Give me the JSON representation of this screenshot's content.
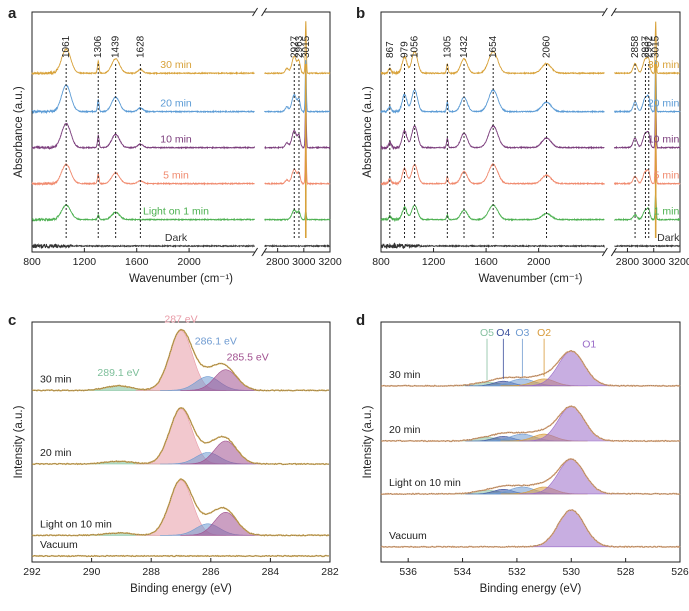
{
  "chart_data": [
    {
      "panel": "a",
      "type": "line",
      "xlabel": "Wavenumber (cm⁻¹)",
      "ylabel": "Absorbance (a.u.)",
      "xlim": [
        800,
        3200
      ],
      "axis_break": [
        2500,
        2700
      ],
      "xticks": [
        800,
        1200,
        1600,
        2000,
        2800,
        3000,
        3200
      ],
      "peak_lines": [
        1061,
        1306,
        1439,
        1628,
        2927,
        2963,
        3015
      ],
      "peak_labels": [
        "1061",
        "1306",
        "1439",
        "1628",
        "2927",
        "2963",
        "3015"
      ],
      "series": [
        {
          "name": "30 min",
          "color": "#d8a23a",
          "offset": 0.72,
          "peaks": [
            [
              1061,
              0.1,
              35
            ],
            [
              1306,
              0.05,
              6
            ],
            [
              1439,
              0.06,
              30
            ],
            [
              1628,
              0.015,
              20
            ],
            [
              2870,
              0.02,
              12
            ],
            [
              2927,
              0.07,
              18
            ],
            [
              2963,
              0.045,
              10
            ],
            [
              3015,
              0.22,
              4
            ]
          ]
        },
        {
          "name": "20 min",
          "color": "#5b9bd5",
          "offset": 0.56,
          "peaks": [
            [
              1061,
              0.11,
              35
            ],
            [
              1306,
              0.05,
              6
            ],
            [
              1439,
              0.06,
              30
            ],
            [
              1628,
              0.015,
              20
            ],
            [
              2870,
              0.02,
              12
            ],
            [
              2927,
              0.07,
              18
            ],
            [
              2963,
              0.045,
              10
            ],
            [
              3015,
              0.22,
              4
            ]
          ]
        },
        {
          "name": "10 min",
          "color": "#7b3d7c",
          "offset": 0.41,
          "peaks": [
            [
              1061,
              0.1,
              35
            ],
            [
              1306,
              0.05,
              6
            ],
            [
              1439,
              0.055,
              30
            ],
            [
              1628,
              0.015,
              20
            ],
            [
              2870,
              0.02,
              12
            ],
            [
              2927,
              0.07,
              18
            ],
            [
              2963,
              0.045,
              10
            ],
            [
              3015,
              0.22,
              4
            ]
          ]
        },
        {
          "name": "5 min",
          "color": "#f08a6e",
          "offset": 0.26,
          "peaks": [
            [
              1061,
              0.08,
              35
            ],
            [
              1306,
              0.04,
              6
            ],
            [
              1439,
              0.045,
              30
            ],
            [
              1628,
              0.012,
              20
            ],
            [
              2870,
              0.015,
              12
            ],
            [
              2927,
              0.06,
              18
            ],
            [
              2963,
              0.04,
              10
            ],
            [
              3015,
              0.22,
              4
            ]
          ]
        },
        {
          "name": "Light on 1 min",
          "color": "#4cb050",
          "offset": 0.11,
          "peaks": [
            [
              1061,
              0.06,
              35
            ],
            [
              1306,
              0.02,
              6
            ],
            [
              1439,
              0.03,
              30
            ],
            [
              2927,
              0.04,
              18
            ],
            [
              2963,
              0.03,
              10
            ],
            [
              3015,
              0.04,
              4
            ]
          ]
        },
        {
          "name": "Dark",
          "color": "#333333",
          "offset": 0.0,
          "peaks": []
        }
      ]
    },
    {
      "panel": "b",
      "type": "line",
      "xlabel": "Wavenumber (cm⁻¹)",
      "ylabel": "Absorbance (a.u.)",
      "xlim": [
        800,
        3200
      ],
      "axis_break": [
        2500,
        2700
      ],
      "xticks": [
        800,
        1200,
        1600,
        2000,
        2800,
        3000,
        3200
      ],
      "peak_lines": [
        867,
        979,
        1056,
        1305,
        1432,
        1654,
        2060,
        2858,
        2937,
        2962,
        3015
      ],
      "peak_labels": [
        "867",
        "979",
        "1056",
        "1305",
        "1432",
        "1654",
        "2060",
        "2858",
        "2937",
        "2962",
        "3015"
      ],
      "series": [
        {
          "name": "30 min",
          "color": "#d8a23a",
          "offset": 0.72,
          "peaks": [
            [
              867,
              0.02,
              10
            ],
            [
              979,
              0.07,
              18
            ],
            [
              1056,
              0.09,
              22
            ],
            [
              1305,
              0.04,
              6
            ],
            [
              1432,
              0.06,
              25
            ],
            [
              1654,
              0.09,
              35
            ],
            [
              2060,
              0.04,
              35
            ],
            [
              2858,
              0.04,
              15
            ],
            [
              2937,
              0.06,
              18
            ],
            [
              2962,
              0.04,
              10
            ],
            [
              3015,
              0.22,
              4
            ]
          ]
        },
        {
          "name": "20 min",
          "color": "#5b9bd5",
          "offset": 0.56,
          "peaks": [
            [
              867,
              0.02,
              10
            ],
            [
              979,
              0.07,
              18
            ],
            [
              1056,
              0.09,
              22
            ],
            [
              1305,
              0.04,
              6
            ],
            [
              1432,
              0.06,
              25
            ],
            [
              1654,
              0.09,
              35
            ],
            [
              2060,
              0.04,
              35
            ],
            [
              2858,
              0.04,
              15
            ],
            [
              2937,
              0.06,
              18
            ],
            [
              2962,
              0.04,
              10
            ],
            [
              3015,
              0.22,
              4
            ]
          ]
        },
        {
          "name": "10 min",
          "color": "#7b3d7c",
          "offset": 0.41,
          "peaks": [
            [
              867,
              0.02,
              10
            ],
            [
              979,
              0.07,
              18
            ],
            [
              1056,
              0.09,
              22
            ],
            [
              1305,
              0.04,
              6
            ],
            [
              1432,
              0.06,
              25
            ],
            [
              1654,
              0.09,
              35
            ],
            [
              2060,
              0.04,
              35
            ],
            [
              2858,
              0.04,
              15
            ],
            [
              2937,
              0.06,
              18
            ],
            [
              2962,
              0.04,
              10
            ],
            [
              3015,
              0.22,
              4
            ]
          ]
        },
        {
          "name": "5 min",
          "color": "#f08a6e",
          "offset": 0.26,
          "peaks": [
            [
              867,
              0.02,
              10
            ],
            [
              979,
              0.06,
              18
            ],
            [
              1056,
              0.08,
              22
            ],
            [
              1305,
              0.03,
              6
            ],
            [
              1432,
              0.05,
              25
            ],
            [
              1654,
              0.08,
              35
            ],
            [
              2060,
              0.035,
              35
            ],
            [
              2858,
              0.03,
              15
            ],
            [
              2937,
              0.05,
              18
            ],
            [
              2962,
              0.035,
              10
            ],
            [
              3015,
              0.22,
              4
            ]
          ]
        },
        {
          "name": "1 min",
          "color": "#4cb050",
          "offset": 0.11,
          "peaks": [
            [
              867,
              0.015,
              10
            ],
            [
              979,
              0.05,
              18
            ],
            [
              1056,
              0.06,
              22
            ],
            [
              1305,
              0.02,
              6
            ],
            [
              1432,
              0.04,
              25
            ],
            [
              1654,
              0.06,
              35
            ],
            [
              2060,
              0.025,
              35
            ],
            [
              2858,
              0.02,
              15
            ],
            [
              2937,
              0.04,
              18
            ],
            [
              2962,
              0.03,
              10
            ],
            [
              3015,
              0.12,
              4
            ]
          ]
        },
        {
          "name": "Dark",
          "color": "#333333",
          "offset": 0.0,
          "peaks": []
        }
      ]
    },
    {
      "panel": "c",
      "type": "area",
      "xlabel": "Binding energy (eV)",
      "ylabel": "Intensity (a.u.)",
      "xlim": [
        292,
        282
      ],
      "xticks": [
        292,
        290,
        288,
        286,
        284,
        282
      ],
      "components": [
        {
          "name": "289.1 eV",
          "center": 289.1,
          "color": "#7dbf9a",
          "width": 0.45
        },
        {
          "name": "287 eV",
          "center": 287.0,
          "color": "#e89aa6",
          "width": 0.38
        },
        {
          "name": "286.1 eV",
          "center": 286.1,
          "color": "#6f9bd1",
          "width": 0.4
        },
        {
          "name": "285.5 eV",
          "center": 285.5,
          "color": "#a0508f",
          "width": 0.38
        }
      ],
      "traces": [
        {
          "name": "30 min",
          "offset": 0.72,
          "amps": [
            0.02,
            0.26,
            0.06,
            0.09
          ]
        },
        {
          "name": "20 min",
          "offset": 0.4,
          "amps": [
            0.012,
            0.24,
            0.05,
            0.1
          ]
        },
        {
          "name": "Light on 10 min",
          "offset": 0.09,
          "amps": [
            0.01,
            0.24,
            0.05,
            0.1
          ]
        },
        {
          "name": "Vacuum",
          "offset": 0.0,
          "amps": [
            0,
            0,
            0,
            0
          ]
        }
      ],
      "envelope_color": "#c9a04a"
    },
    {
      "panel": "d",
      "type": "area",
      "xlabel": "Binding energy (eV)",
      "ylabel": "Intensity (a.u.)",
      "xlim": [
        537,
        526
      ],
      "xticks": [
        536,
        534,
        532,
        530,
        528,
        526
      ],
      "components": [
        {
          "name": "O5",
          "center": 533.1,
          "color": "#86c0a0",
          "width": 0.45
        },
        {
          "name": "O4",
          "center": 532.5,
          "color": "#3a4f9c",
          "width": 0.35
        },
        {
          "name": "O3",
          "center": 531.8,
          "color": "#6f9bd1",
          "width": 0.45
        },
        {
          "name": "O2",
          "center": 531.0,
          "color": "#d89a3a",
          "width": 0.4
        },
        {
          "name": "O1",
          "center": 530.0,
          "color": "#9a6cc8",
          "width": 0.48
        }
      ],
      "traces": [
        {
          "name": "30 min",
          "offset": 0.74,
          "amps": [
            0.015,
            0.02,
            0.03,
            0.03,
            0.15
          ]
        },
        {
          "name": "20 min",
          "offset": 0.5,
          "amps": [
            0.015,
            0.02,
            0.03,
            0.03,
            0.15
          ]
        },
        {
          "name": "Light on 10 min",
          "offset": 0.27,
          "amps": [
            0.015,
            0.02,
            0.03,
            0.03,
            0.15
          ]
        },
        {
          "name": "Vacuum",
          "offset": 0.04,
          "amps": [
            0,
            0,
            0,
            0,
            0.16
          ]
        }
      ],
      "envelope_color": "#d9a070"
    }
  ]
}
